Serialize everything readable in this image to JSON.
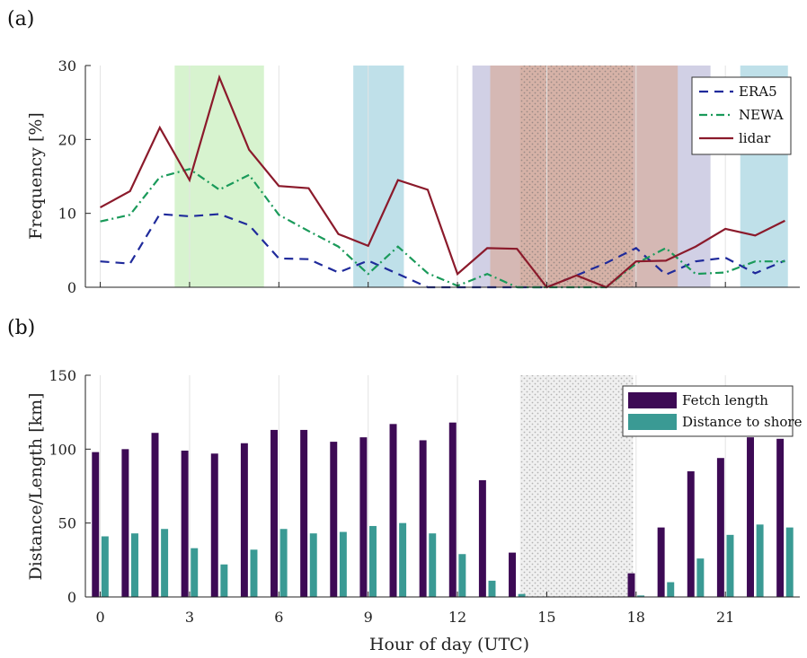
{
  "chart_data": [
    {
      "panel_label": "(a)",
      "type": "line",
      "ylabel": "Frequency [%]",
      "xlim": [
        -0.5,
        23.5
      ],
      "ylim": [
        0,
        30
      ],
      "yticks": [
        0,
        10,
        20,
        30
      ],
      "xticks": [
        0,
        3,
        6,
        9,
        12,
        15,
        18,
        21
      ],
      "grid": "vertical",
      "legend_position": "top-right",
      "x": [
        0,
        1,
        2,
        3,
        4,
        5,
        6,
        7,
        8,
        9,
        10,
        11,
        12,
        13,
        14,
        15,
        16,
        17,
        18,
        19,
        20,
        21,
        22,
        23
      ],
      "series": [
        {
          "name": "ERA5",
          "style": "dashed",
          "color": "#1f2a9b",
          "values": [
            3.5,
            3.2,
            9.9,
            9.6,
            9.9,
            8.4,
            3.9,
            3.8,
            2.0,
            3.6,
            1.8,
            0,
            0,
            0,
            0,
            0,
            1.6,
            3.3,
            5.3,
            1.7,
            3.5,
            4.0,
            1.9,
            3.6
          ]
        },
        {
          "name": "NEWA",
          "style": "dashdot",
          "color": "#1a9a5a",
          "values": [
            8.9,
            9.8,
            14.9,
            16.0,
            13.2,
            15.2,
            9.8,
            7.6,
            5.5,
            1.8,
            5.5,
            1.9,
            0.2,
            1.8,
            0,
            0,
            0,
            0,
            3.2,
            5.3,
            1.8,
            2.0,
            3.5,
            3.5
          ]
        },
        {
          "name": "lidar",
          "style": "solid",
          "color": "#8b1a2b",
          "values": [
            10.8,
            13.0,
            21.6,
            14.5,
            28.4,
            18.6,
            13.7,
            13.4,
            7.2,
            5.6,
            14.5,
            13.2,
            1.8,
            5.3,
            5.2,
            0,
            1.6,
            0,
            3.5,
            3.6,
            5.5,
            7.9,
            7.0,
            9.0
          ]
        }
      ],
      "shaded_bands": [
        {
          "x0": 2.5,
          "x1": 5.5,
          "color": "#c9efbf",
          "pattern": false
        },
        {
          "x0": 8.5,
          "x1": 10.2,
          "color": "#a9d6e2",
          "pattern": false
        },
        {
          "x0": 12.5,
          "x1": 20.5,
          "color": "#c2c0dc",
          "pattern": false
        },
        {
          "x0": 13.1,
          "x1": 19.4,
          "color": "#d6b0a3",
          "pattern": false
        },
        {
          "x0": 14.1,
          "x1": 17.9,
          "color": "#d6b0a3",
          "pattern": true
        },
        {
          "x0": 21.5,
          "x1": 23.1,
          "color": "#a9d6e2",
          "pattern": false
        }
      ]
    },
    {
      "panel_label": "(b)",
      "type": "bar",
      "ylabel": "Distance/Length [km]",
      "xlabel": "Hour of day (UTC)",
      "xlim": [
        -0.5,
        23.5
      ],
      "ylim": [
        0,
        150
      ],
      "yticks": [
        0,
        50,
        100,
        150
      ],
      "xticks": [
        0,
        3,
        6,
        9,
        12,
        15,
        18,
        21
      ],
      "grid": "vertical",
      "legend_position": "top-right",
      "x": [
        0,
        1,
        2,
        3,
        4,
        5,
        6,
        7,
        8,
        9,
        10,
        11,
        12,
        13,
        14,
        15,
        16,
        17,
        18,
        19,
        20,
        21,
        22,
        23
      ],
      "series": [
        {
          "name": "Fetch length",
          "color": "#3d0a55",
          "values": [
            98,
            100,
            111,
            99,
            97,
            104,
            113,
            113,
            105,
            108,
            117,
            106,
            118,
            79,
            30,
            0,
            0,
            0,
            16,
            47,
            85,
            94,
            108,
            107
          ]
        },
        {
          "name": "Distance to shore",
          "color": "#3a9a94",
          "values": [
            41,
            43,
            46,
            33,
            22,
            32,
            46,
            43,
            44,
            48,
            50,
            43,
            29,
            11,
            2,
            0,
            0,
            0,
            1,
            10,
            26,
            42,
            49,
            47
          ]
        }
      ],
      "shaded_bands": [
        {
          "x0": 14.1,
          "x1": 17.9,
          "color": "#dddddd",
          "pattern": true
        }
      ]
    }
  ]
}
